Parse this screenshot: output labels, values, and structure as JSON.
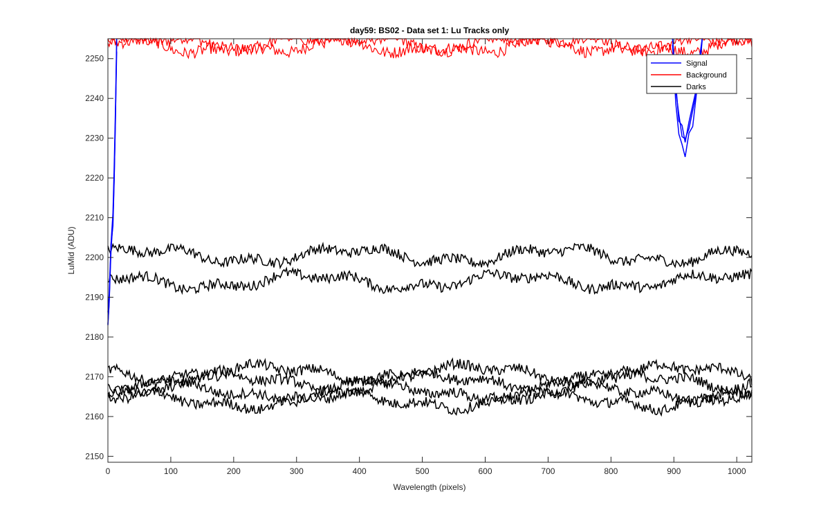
{
  "chart_data": {
    "type": "line",
    "title": "day59: BS02 - Data set 1: Lu Tracks only",
    "xlabel": "Wavelength (pixels)",
    "ylabel": "LuMid (ADU)",
    "xlim": [
      0,
      1024
    ],
    "ylim": [
      2148.5,
      2255
    ],
    "xticks": [
      0,
      100,
      200,
      300,
      400,
      500,
      600,
      700,
      800,
      900,
      1000
    ],
    "yticks": [
      2150,
      2160,
      2170,
      2180,
      2190,
      2200,
      2210,
      2220,
      2230,
      2240,
      2250
    ],
    "grid": false,
    "legend": {
      "location": "top-right",
      "entries": [
        "Signal",
        "Background",
        "Darks"
      ]
    },
    "series": [
      {
        "name": "Signal",
        "color": "#0000ff",
        "description_points": [
          {
            "x": 0,
            "y": 2184
          },
          {
            "x": 2,
            "y": 2190
          },
          {
            "x": 5,
            "y": 2203
          },
          {
            "x": 8,
            "y": 2210
          },
          {
            "x": 10,
            "y": 2220
          },
          {
            "x": 12,
            "y": 2235
          },
          {
            "x": 14,
            "y": 2255
          },
          {
            "x": 898,
            "y": 2255
          },
          {
            "x": 903,
            "y": 2242
          },
          {
            "x": 908,
            "y": 2234
          },
          {
            "x": 913,
            "y": 2231
          },
          {
            "x": 918,
            "y": 2228
          },
          {
            "x": 924,
            "y": 2231
          },
          {
            "x": 930,
            "y": 2236
          },
          {
            "x": 936,
            "y": 2243
          },
          {
            "x": 941,
            "y": 2250
          },
          {
            "x": 945,
            "y": 2255
          }
        ]
      },
      {
        "name": "Background",
        "color": "#ff0000",
        "mean": 2253.5,
        "noise": 1.5
      },
      {
        "name": "Darks",
        "color": "#000000",
        "traces": [
          {
            "mean": 2200.5,
            "noise": 1.3
          },
          {
            "mean": 2194,
            "noise": 1.3
          },
          {
            "mean": 2171,
            "noise": 1.3
          },
          {
            "mean": 2169,
            "noise": 1.3
          },
          {
            "mean": 2166,
            "noise": 1.3
          },
          {
            "mean": 2164,
            "noise": 1.3
          }
        ]
      }
    ]
  }
}
